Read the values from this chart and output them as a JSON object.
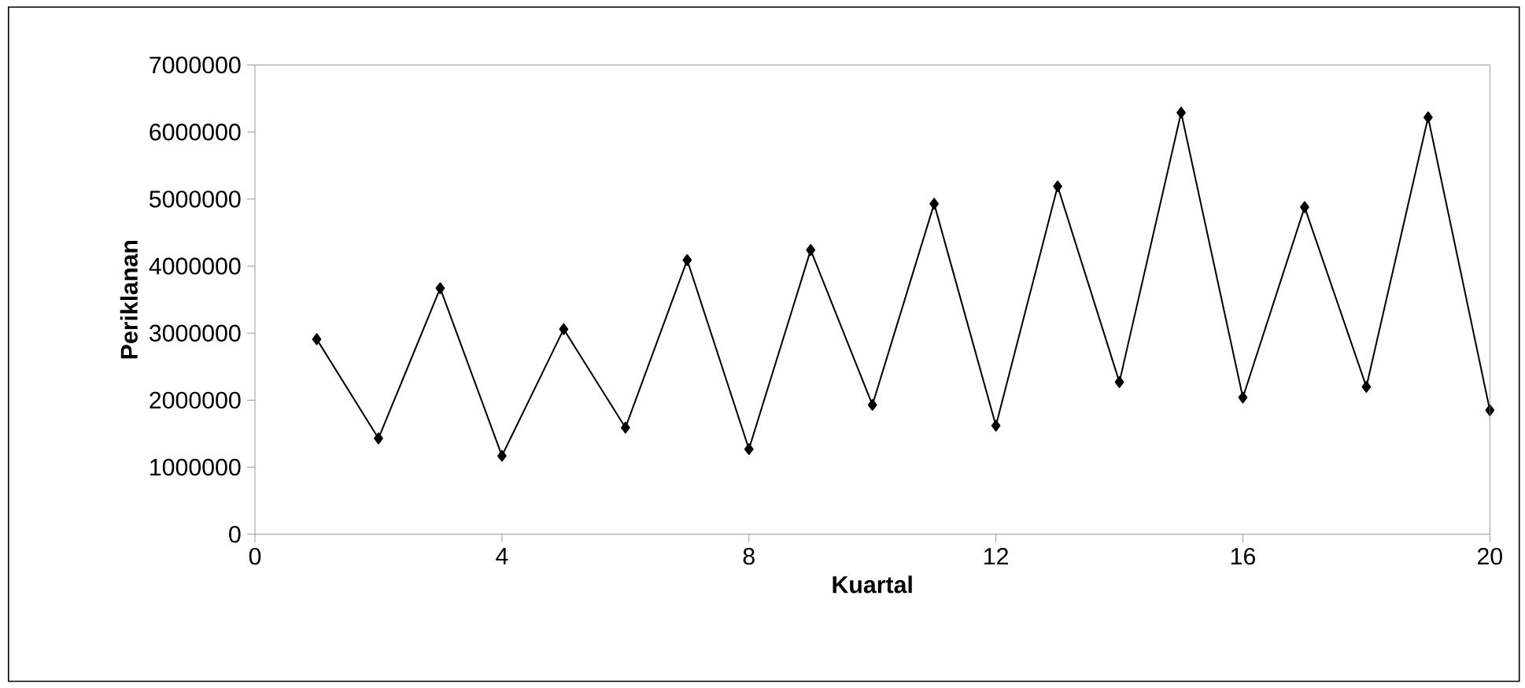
{
  "chart_data": {
    "type": "line",
    "xlabel": "Kuartal",
    "ylabel": "Periklanan",
    "x": [
      1,
      2,
      3,
      4,
      5,
      6,
      7,
      8,
      9,
      10,
      11,
      12,
      13,
      14,
      15,
      16,
      17,
      18,
      19,
      20
    ],
    "series": [
      {
        "color": "#000000",
        "values": [
          2910000,
          1430000,
          3670000,
          1170000,
          3060000,
          1590000,
          4090000,
          1270000,
          4240000,
          1930000,
          4930000,
          1620000,
          5190000,
          2270000,
          6290000,
          2040000,
          4880000,
          2200000,
          6220000,
          1850000
        ]
      }
    ],
    "xlim": [
      0,
      20
    ],
    "xticks": [
      0,
      4,
      8,
      12,
      16,
      20
    ],
    "ylim": [
      0,
      7000000
    ],
    "yticks": [
      0,
      1000000,
      2000000,
      3000000,
      4000000,
      5000000,
      6000000,
      7000000
    ],
    "grid": false,
    "marker": "diamond",
    "line_style": "solid"
  }
}
